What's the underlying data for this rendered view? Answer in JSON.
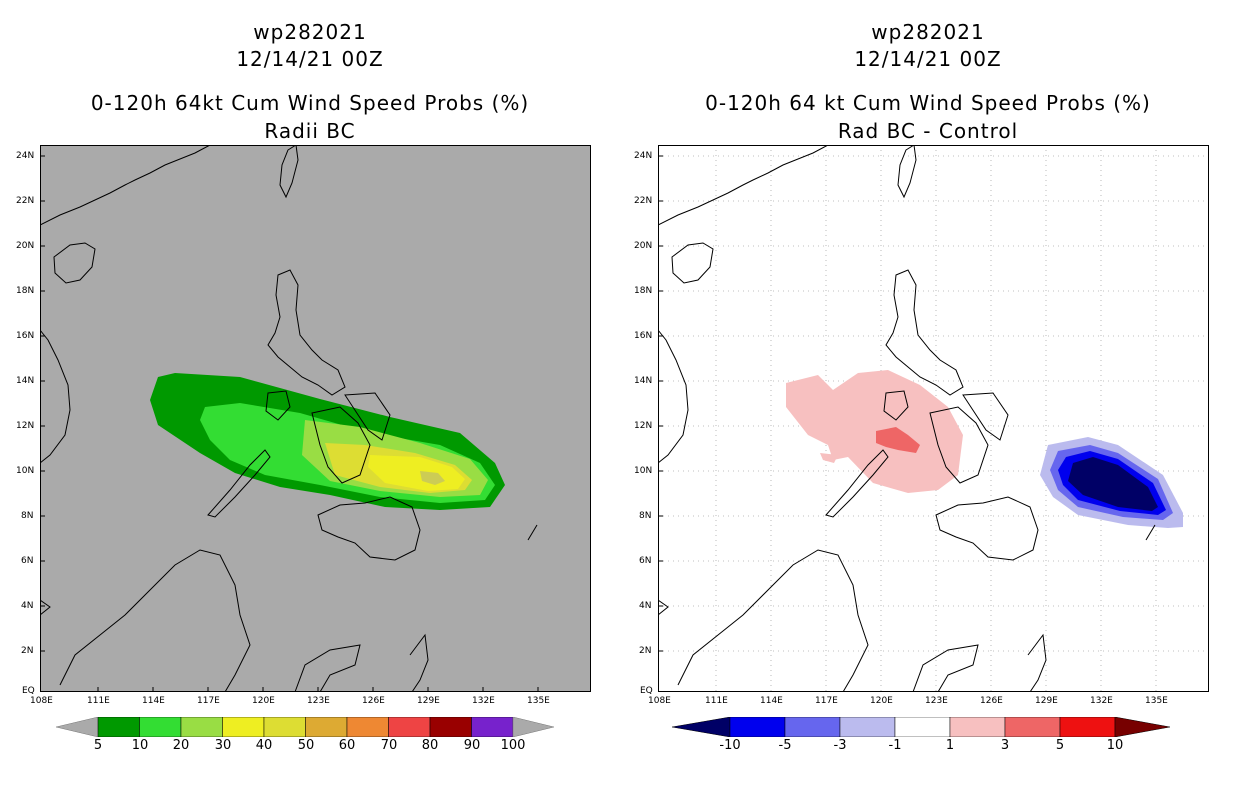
{
  "left_panel": {
    "title": [
      "wp282021",
      "12/14/21 00Z",
      "0-120h 64kt Cum Wind Speed Probs (%)",
      "Radii BC"
    ],
    "lat_labels": [
      "24N",
      "22N",
      "20N",
      "18N",
      "16N",
      "14N",
      "12N",
      "10N",
      "8N",
      "6N",
      "4N",
      "2N",
      "EQ"
    ],
    "lon_labels": [
      "108E",
      "111E",
      "114E",
      "117E",
      "120E",
      "123E",
      "126E",
      "129E",
      "132E",
      "135E"
    ],
    "colorbar": {
      "labels": [
        "5",
        "10",
        "20",
        "30",
        "40",
        "50",
        "60",
        "70",
        "80",
        "90",
        "100"
      ],
      "colors": [
        "#009900",
        "#33dd33",
        "#99dd44",
        "#eeee22",
        "#dddd33",
        "#ddaa33",
        "#ee8833",
        "#ee4444",
        "#990000",
        "#7722cc"
      ]
    },
    "background_color": "#aaaaaa"
  },
  "right_panel": {
    "title": [
      "wp282021",
      "12/14/21 00Z",
      "0-120h 64 kt Cum Wind Speed Probs (%)",
      "Rad BC - Control"
    ],
    "lat_labels": [
      "24N",
      "22N",
      "20N",
      "18N",
      "16N",
      "14N",
      "12N",
      "10N",
      "8N",
      "6N",
      "4N",
      "2N",
      "EQ"
    ],
    "lon_labels": [
      "108E",
      "111E",
      "114E",
      "117E",
      "120E",
      "123E",
      "126E",
      "129E",
      "132E",
      "135E"
    ],
    "colorbar": {
      "labels": [
        "-10",
        "-5",
        "-3",
        "-1",
        "1",
        "3",
        "5",
        "10"
      ],
      "colors": [
        "#000066",
        "#0000ee",
        "#6666ee",
        "#bbbbee",
        "#ffffff",
        "#f7c0c0",
        "#ee6666",
        "#ee1111",
        "#770000"
      ]
    },
    "background_color": "#ffffff"
  }
}
